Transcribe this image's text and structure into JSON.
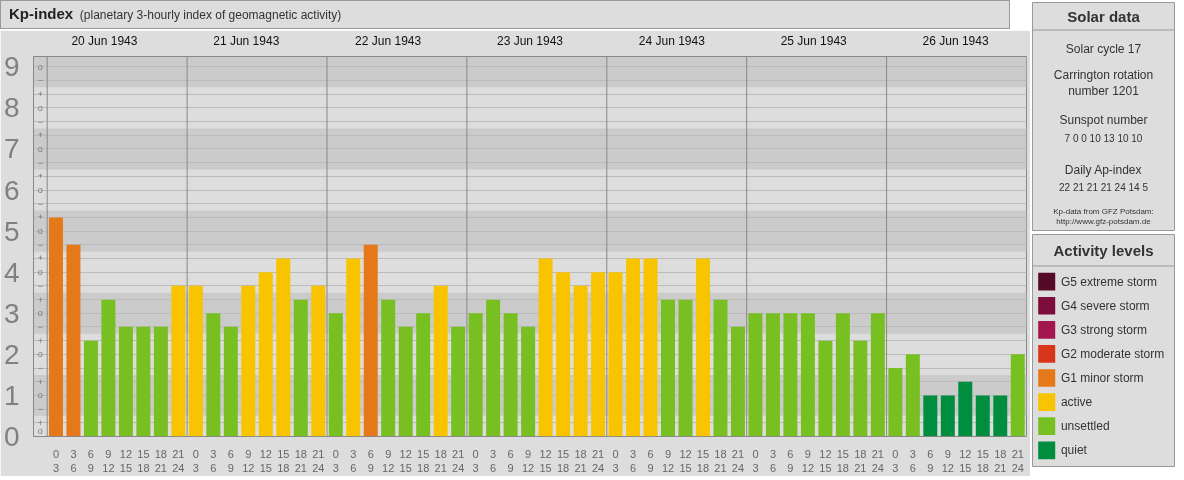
{
  "chart_data": [
    {
      "type": "bar",
      "title": "Kp-index",
      "subtitle": "(planetary 3-hourly index of geomagnetic activity)",
      "legend_title": "Activity levels",
      "legend": "right",
      "grid": "y",
      "x": [
        "1943-06-20T01:30",
        "1943-06-20T04:30",
        "1943-06-20T07:30",
        "1943-06-20T10:30",
        "1943-06-20T13:30",
        "1943-06-20T16:30",
        "1943-06-20T19:30",
        "1943-06-20T22:30",
        "1943-06-21T01:30",
        "1943-06-21T04:30",
        "1943-06-21T07:30",
        "1943-06-21T10:30",
        "1943-06-21T13:30",
        "1943-06-21T16:30",
        "1943-06-21T19:30",
        "1943-06-21T22:30",
        "1943-06-22T01:30",
        "1943-06-22T04:30",
        "1943-06-22T07:30",
        "1943-06-22T10:30",
        "1943-06-22T13:30",
        "1943-06-22T16:30",
        "1943-06-22T19:30",
        "1943-06-22T22:30",
        "1943-06-23T01:30",
        "1943-06-23T04:30",
        "1943-06-23T07:30",
        "1943-06-23T10:30",
        "1943-06-23T13:30",
        "1943-06-23T16:30",
        "1943-06-23T19:30",
        "1943-06-23T22:30",
        "1943-06-24T01:30",
        "1943-06-24T04:30",
        "1943-06-24T07:30",
        "1943-06-24T10:30",
        "1943-06-24T13:30",
        "1943-06-24T16:30",
        "1943-06-24T19:30",
        "1943-06-24T22:30",
        "1943-06-25T01:30",
        "1943-06-25T04:30",
        "1943-06-25T07:30",
        "1943-06-25T10:30",
        "1943-06-25T13:30",
        "1943-06-25T16:30",
        "1943-06-25T19:30",
        "1943-06-25T22:30",
        "1943-06-26T01:30",
        "1943-06-26T04:30",
        "1943-06-26T07:30",
        "1943-06-26T10:30",
        "1943-06-26T13:30",
        "1943-06-26T16:30",
        "1943-06-26T19:30",
        "1943-06-26T22:30"
      ],
      "series": [
        {
          "name": "G5 extreme storm",
          "color": "#550a28",
          "values": [
            null,
            null,
            null,
            null,
            null,
            null,
            null,
            null,
            null,
            null,
            null,
            null,
            null,
            null,
            null,
            null,
            null,
            null,
            null,
            null,
            null,
            null,
            null,
            null,
            null,
            null,
            null,
            null,
            null,
            null,
            null,
            null,
            null,
            null,
            null,
            null,
            null,
            null,
            null,
            null,
            null,
            null,
            null,
            null,
            null,
            null,
            null,
            null,
            null,
            null,
            null,
            null,
            null,
            null,
            null,
            null
          ]
        },
        {
          "name": "G4 severe storm",
          "color": "#7b0c3c",
          "values": [
            null,
            null,
            null,
            null,
            null,
            null,
            null,
            null,
            null,
            null,
            null,
            null,
            null,
            null,
            null,
            null,
            null,
            null,
            null,
            null,
            null,
            null,
            null,
            null,
            null,
            null,
            null,
            null,
            null,
            null,
            null,
            null,
            null,
            null,
            null,
            null,
            null,
            null,
            null,
            null,
            null,
            null,
            null,
            null,
            null,
            null,
            null,
            null,
            null,
            null,
            null,
            null,
            null,
            null,
            null,
            null
          ]
        },
        {
          "name": "G3 strong storm",
          "color": "#a3164f",
          "values": [
            null,
            null,
            null,
            null,
            null,
            null,
            null,
            null,
            null,
            null,
            null,
            null,
            null,
            null,
            null,
            null,
            null,
            null,
            null,
            null,
            null,
            null,
            null,
            null,
            null,
            null,
            null,
            null,
            null,
            null,
            null,
            null,
            null,
            null,
            null,
            null,
            null,
            null,
            null,
            null,
            null,
            null,
            null,
            null,
            null,
            null,
            null,
            null,
            null,
            null,
            null,
            null,
            null,
            null,
            null,
            null
          ]
        },
        {
          "name": "G2 moderate storm",
          "color": "#d8361a",
          "values": [
            null,
            null,
            null,
            null,
            null,
            null,
            null,
            null,
            null,
            null,
            null,
            null,
            null,
            null,
            null,
            null,
            null,
            null,
            null,
            null,
            null,
            null,
            null,
            null,
            null,
            null,
            null,
            null,
            null,
            null,
            null,
            null,
            null,
            null,
            null,
            null,
            null,
            null,
            null,
            null,
            null,
            null,
            null,
            null,
            null,
            null,
            null,
            null,
            null,
            null,
            null,
            null,
            null,
            null,
            null,
            null
          ]
        },
        {
          "name": "G1 minor storm",
          "color": "#e57818",
          "values": [
            5.33,
            4.67,
            null,
            null,
            null,
            null,
            null,
            null,
            null,
            null,
            null,
            null,
            null,
            null,
            null,
            null,
            null,
            null,
            4.67,
            null,
            null,
            null,
            null,
            null,
            null,
            null,
            null,
            null,
            null,
            null,
            null,
            null,
            null,
            null,
            null,
            null,
            null,
            null,
            null,
            null,
            null,
            null,
            null,
            null,
            null,
            null,
            null,
            null,
            null,
            null,
            null,
            null,
            null,
            null,
            null,
            null
          ]
        },
        {
          "name": "active",
          "color": "#f8c400",
          "values": [
            null,
            null,
            null,
            null,
            null,
            null,
            null,
            3.67,
            3.67,
            null,
            null,
            3.67,
            4,
            4.33,
            null,
            3.67,
            null,
            4.33,
            null,
            null,
            null,
            null,
            3.67,
            null,
            null,
            null,
            null,
            null,
            4.33,
            4,
            3.67,
            4,
            4,
            4.33,
            4.33,
            null,
            null,
            4.33,
            null,
            null,
            null,
            null,
            null,
            null,
            null,
            null,
            null,
            null,
            null,
            null,
            null,
            null,
            null,
            null,
            null,
            null
          ]
        },
        {
          "name": "unsettled",
          "color": "#78bf22",
          "values": [
            null,
            null,
            2.33,
            3.33,
            2.67,
            2.67,
            2.67,
            null,
            null,
            3,
            2.67,
            null,
            null,
            null,
            3.33,
            null,
            3,
            null,
            null,
            3.33,
            2.67,
            3,
            null,
            2.67,
            3,
            3.33,
            3,
            2.67,
            null,
            null,
            null,
            null,
            null,
            null,
            null,
            3.33,
            3.33,
            null,
            3.33,
            2.67,
            3,
            3,
            3,
            3,
            2.33,
            3,
            2.33,
            3,
            1.67,
            2,
            null,
            null,
            null,
            null,
            null,
            2
          ]
        },
        {
          "name": "quiet",
          "color": "#008e3e",
          "values": [
            null,
            null,
            null,
            null,
            null,
            null,
            null,
            null,
            null,
            null,
            null,
            null,
            null,
            null,
            null,
            null,
            null,
            null,
            null,
            null,
            null,
            null,
            null,
            null,
            null,
            null,
            null,
            null,
            null,
            null,
            null,
            null,
            null,
            null,
            null,
            null,
            null,
            null,
            null,
            null,
            null,
            null,
            null,
            null,
            null,
            null,
            null,
            null,
            null,
            null,
            1,
            1,
            1.33,
            1,
            1,
            null
          ]
        }
      ],
      "xlim": [
        "1943-06-20T00:00",
        "1943-06-27T00:00"
      ],
      "xticks": [
        {
          "value": "1943-06-20T01:30",
          "label": "0\n3"
        },
        {
          "value": "1943-06-20T04:30",
          "label": "3\n6"
        },
        {
          "value": "1943-06-20T07:30",
          "label": "6\n9"
        },
        {
          "value": "1943-06-20T10:30",
          "label": "9\n12"
        },
        {
          "value": "1943-06-20T13:30",
          "label": "12\n15"
        },
        {
          "value": "1943-06-20T16:30",
          "label": "15\n18"
        },
        {
          "value": "1943-06-20T19:30",
          "label": "18\n21"
        },
        {
          "value": "1943-06-20T22:30",
          "label": "21\n24"
        },
        {
          "value": "1943-06-21T01:30",
          "label": "0\n3"
        },
        {
          "value": "1943-06-21T04:30",
          "label": "3\n6"
        },
        {
          "value": "1943-06-21T07:30",
          "label": "6\n9"
        },
        {
          "value": "1943-06-21T10:30",
          "label": "9\n12"
        },
        {
          "value": "1943-06-21T13:30",
          "label": "12\n15"
        },
        {
          "value": "1943-06-21T16:30",
          "label": "15\n18"
        },
        {
          "value": "1943-06-21T19:30",
          "label": "18\n21"
        },
        {
          "value": "1943-06-21T22:30",
          "label": "21\n24"
        },
        {
          "value": "1943-06-22T01:30",
          "label": "0\n3"
        },
        {
          "value": "1943-06-22T04:30",
          "label": "3\n6"
        },
        {
          "value": "1943-06-22T07:30",
          "label": "6\n9"
        },
        {
          "value": "1943-06-22T10:30",
          "label": "9\n12"
        },
        {
          "value": "1943-06-22T13:30",
          "label": "12\n15"
        },
        {
          "value": "1943-06-22T16:30",
          "label": "15\n18"
        },
        {
          "value": "1943-06-22T19:30",
          "label": "18\n21"
        },
        {
          "value": "1943-06-22T22:30",
          "label": "21\n24"
        },
        {
          "value": "1943-06-23T01:30",
          "label": "0\n3"
        },
        {
          "value": "1943-06-23T04:30",
          "label": "3\n6"
        },
        {
          "value": "1943-06-23T07:30",
          "label": "6\n9"
        },
        {
          "value": "1943-06-23T10:30",
          "label": "9\n12"
        },
        {
          "value": "1943-06-23T13:30",
          "label": "12\n15"
        },
        {
          "value": "1943-06-23T16:30",
          "label": "15\n18"
        },
        {
          "value": "1943-06-23T19:30",
          "label": "18\n21"
        },
        {
          "value": "1943-06-23T22:30",
          "label": "21\n24"
        },
        {
          "value": "1943-06-24T01:30",
          "label": "0\n3"
        },
        {
          "value": "1943-06-24T04:30",
          "label": "3\n6"
        },
        {
          "value": "1943-06-24T07:30",
          "label": "6\n9"
        },
        {
          "value": "1943-06-24T10:30",
          "label": "9\n12"
        },
        {
          "value": "1943-06-24T13:30",
          "label": "12\n15"
        },
        {
          "value": "1943-06-24T16:30",
          "label": "15\n18"
        },
        {
          "value": "1943-06-24T19:30",
          "label": "18\n21"
        },
        {
          "value": "1943-06-24T22:30",
          "label": "21\n24"
        },
        {
          "value": "1943-06-25T01:30",
          "label": "0\n3"
        },
        {
          "value": "1943-06-25T04:30",
          "label": "3\n6"
        },
        {
          "value": "1943-06-25T07:30",
          "label": "6\n9"
        },
        {
          "value": "1943-06-25T10:30",
          "label": "9\n12"
        },
        {
          "value": "1943-06-25T13:30",
          "label": "12\n15"
        },
        {
          "value": "1943-06-25T16:30",
          "label": "15\n18"
        },
        {
          "value": "1943-06-25T19:30",
          "label": "18\n21"
        },
        {
          "value": "1943-06-25T22:30",
          "label": "21\n24"
        },
        {
          "value": "1943-06-26T01:30",
          "label": "0\n3"
        },
        {
          "value": "1943-06-26T04:30",
          "label": "3\n6"
        },
        {
          "value": "1943-06-26T07:30",
          "label": "6\n9"
        },
        {
          "value": "1943-06-26T10:30",
          "label": "9\n12"
        },
        {
          "value": "1943-06-26T13:30",
          "label": "12\n15"
        },
        {
          "value": "1943-06-26T16:30",
          "label": "15\n18"
        },
        {
          "value": "1943-06-26T19:30",
          "label": "18\n21"
        },
        {
          "value": "1943-06-26T22:30",
          "label": "21\n24"
        }
      ],
      "x2lim": [
        "1943-06-20T00:00",
        "1943-06-27T00:00"
      ],
      "x2ticks": [
        {
          "value": "1943-06-20T12:00",
          "label": "20 Jun 1943"
        },
        {
          "value": "1943-06-21T12:00",
          "label": "21 Jun 1943"
        },
        {
          "value": "1943-06-22T12:00",
          "label": "22 Jun 1943"
        },
        {
          "value": "1943-06-23T12:00",
          "label": "23 Jun 1943"
        },
        {
          "value": "1943-06-24T12:00",
          "label": "24 Jun 1943"
        },
        {
          "value": "1943-06-25T12:00",
          "label": "25 Jun 1943"
        },
        {
          "value": "1943-06-26T12:00",
          "label": "26 Jun 1943"
        }
      ],
      "ylim": [
        0,
        9.25
      ],
      "yticks": [
        0,
        1,
        2,
        3,
        4,
        5,
        6,
        7,
        8,
        9
      ],
      "annotations": [
        "o",
        "+",
        "−",
        "o",
        "+",
        "−",
        "o",
        "+",
        "−",
        "o",
        "+",
        "−",
        "o",
        "+",
        "−",
        "o",
        "+",
        "−",
        "o",
        "+",
        "−",
        "o",
        "+",
        "−",
        "o",
        "+",
        "−",
        "o"
      ],
      "bands": [
        {
          "axis": "y",
          "from": 0.5,
          "to": 1.5,
          "color": "#cbcbcb"
        },
        {
          "axis": "y",
          "from": 2.5,
          "to": 3.5,
          "color": "#cbcbcb"
        },
        {
          "axis": "y",
          "from": 4.5,
          "to": 5.5,
          "color": "#cbcbcb"
        },
        {
          "axis": "y",
          "from": 6.5,
          "to": 7.5,
          "color": "#cbcbcb"
        },
        {
          "axis": "y",
          "from": 8.5,
          "to": 9.25,
          "color": "#cbcbcb"
        }
      ],
      "ref_lines": [
        {
          "axis": "x",
          "value": "1943-06-21T00:00",
          "color": "#888888"
        },
        {
          "axis": "x",
          "value": "1943-06-22T00:00",
          "color": "#888888"
        },
        {
          "axis": "x",
          "value": "1943-06-23T00:00",
          "color": "#888888"
        },
        {
          "axis": "x",
          "value": "1943-06-24T00:00",
          "color": "#888888"
        },
        {
          "axis": "x",
          "value": "1943-06-25T00:00",
          "color": "#888888"
        },
        {
          "axis": "x",
          "value": "1943-06-26T00:00",
          "color": "#888888"
        }
      ]
    },
    {
      "type": "other",
      "title": "Solar data",
      "annotations": [
        "Solar cycle 17",
        "Carrington rotation\nnumber 1201",
        "Sunspot number",
        "7 0 0 10 13 10 10",
        "Daily Ap-index",
        "22 21 21 21 24 14 5",
        "Kp-data from GFZ Potsdam:\nhttp://www.gfz-potsdam.de"
      ]
    }
  ]
}
